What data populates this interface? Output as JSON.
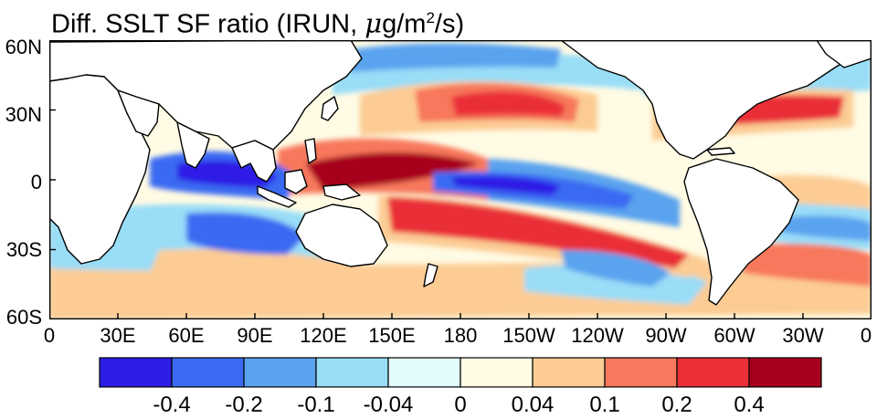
{
  "title": {
    "prefix": "Diff. SSLT SF ratio (IRUN, ",
    "mu": "μ",
    "unit_base": "g/m",
    "unit_exp": "2",
    "suffix": "/s)"
  },
  "latitude_labels": [
    "60N",
    "30N",
    "0",
    "30S",
    "60S"
  ],
  "longitude_labels": [
    "0",
    "30E",
    "60E",
    "90E",
    "120E",
    "150E",
    "180",
    "150W",
    "120W",
    "90W",
    "60W",
    "30W",
    "0"
  ],
  "colorbar": {
    "colors": [
      "#2d1ee6",
      "#3a6bf2",
      "#5aa3ef",
      "#99ddf7",
      "#e2fbfb",
      "#fffbe4",
      "#fccc94",
      "#f7785c",
      "#ea2f38",
      "#a7001e"
    ],
    "tick_labels": [
      "-0.4",
      "-0.2",
      "-0.1",
      "-0.04",
      "0",
      "0.04",
      "0.1",
      "0.2",
      "0.4"
    ]
  },
  "map": {
    "ocean_base_color": "#fffbe4",
    "land_color": "#ffffff",
    "coastline_color": "#000000"
  }
}
